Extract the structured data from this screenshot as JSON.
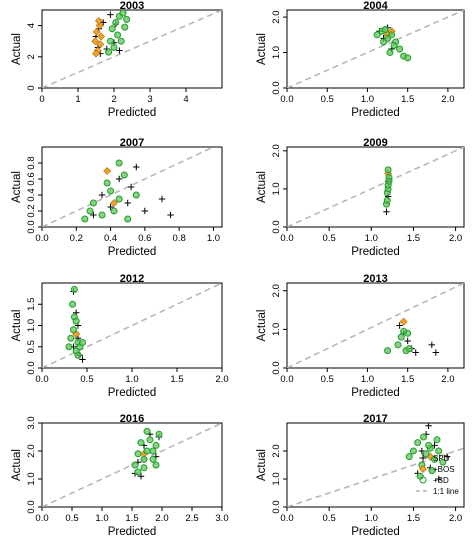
{
  "colors": {
    "SPD": "#000000",
    "BOS": "#f2a22a",
    "SD": "#1f9e2c",
    "SD_fill": "#63c25a",
    "one_to_one": "#b8b8b8"
  },
  "legend": {
    "placement": "right, inside panel 2017",
    "entries": [
      {
        "key": "SPD",
        "label": "SPD",
        "symbol": "plus"
      },
      {
        "key": "BOS",
        "label": "+BOS",
        "symbol": "diamond"
      },
      {
        "key": "SD",
        "label": "+SD",
        "symbol": "circle"
      },
      {
        "key": "line",
        "label": "1:1 line",
        "symbol": "dashed"
      }
    ]
  },
  "chart_data": [
    {
      "type": "scatter",
      "title": "2003",
      "xlabel": "Predicted",
      "ylabel": "Actual",
      "xlim": [
        0,
        5
      ],
      "ylim": [
        0,
        5
      ],
      "xticks": [
        "0",
        "1",
        "2",
        "3",
        "4"
      ],
      "yticks": [
        "0",
        "2",
        "4"
      ],
      "xtick_values": [
        0,
        1,
        2,
        3,
        4
      ],
      "ytick_values": [
        0,
        2,
        4
      ],
      "series": [
        {
          "name": "SPD",
          "points": [
            [
              1.5,
              3.3
            ],
            [
              1.55,
              2.6
            ],
            [
              1.58,
              3.8
            ],
            [
              1.62,
              2.2
            ],
            [
              1.7,
              4.2
            ],
            [
              1.8,
              2.5
            ],
            [
              1.9,
              4.7
            ],
            [
              2.0,
              2.9
            ],
            [
              2.05,
              4.1
            ],
            [
              2.15,
              2.4
            ]
          ]
        },
        {
          "name": "+BOS",
          "points": [
            [
              1.48,
              3.0
            ],
            [
              1.52,
              3.6
            ],
            [
              1.55,
              2.4
            ],
            [
              1.6,
              4.0
            ],
            [
              1.62,
              2.8
            ],
            [
              1.64,
              3.3
            ],
            [
              1.5,
              2.2
            ],
            [
              1.58,
              4.3
            ]
          ]
        },
        {
          "name": "+SD",
          "points": [
            [
              1.9,
              3.0
            ],
            [
              1.95,
              3.8
            ],
            [
              2.0,
              2.6
            ],
            [
              2.05,
              4.2
            ],
            [
              2.1,
              3.4
            ],
            [
              2.15,
              4.6
            ],
            [
              2.2,
              3.0
            ],
            [
              2.25,
              4.8
            ],
            [
              2.3,
              3.9
            ],
            [
              1.85,
              2.3
            ],
            [
              2.35,
              4.4
            ]
          ]
        }
      ]
    },
    {
      "type": "scatter",
      "title": "2004",
      "xlabel": "Predicted",
      "ylabel": "Actual",
      "xlim": [
        0,
        2.2
      ],
      "ylim": [
        0,
        2.2
      ],
      "xticks": [
        "0.0",
        "0.5",
        "1.0",
        "1.5",
        "2.0"
      ],
      "yticks": [
        "0.0",
        "1.0",
        "2.0"
      ],
      "xtick_values": [
        0,
        0.5,
        1.0,
        1.5,
        2.0
      ],
      "ytick_values": [
        0,
        1.0,
        2.0
      ],
      "series": [
        {
          "name": "SPD",
          "points": [
            [
              1.15,
              1.6
            ],
            [
              1.2,
              1.4
            ],
            [
              1.25,
              1.7
            ],
            [
              1.3,
              1.1
            ]
          ]
        },
        {
          "name": "+BOS",
          "points": [
            [
              1.25,
              1.5
            ],
            [
              1.3,
              1.6
            ]
          ]
        },
        {
          "name": "+SD",
          "points": [
            [
              1.12,
              1.5
            ],
            [
              1.18,
              1.6
            ],
            [
              1.2,
              1.3
            ],
            [
              1.25,
              1.4
            ],
            [
              1.28,
              1.0
            ],
            [
              1.3,
              1.5
            ],
            [
              1.35,
              1.3
            ],
            [
              1.4,
              1.1
            ],
            [
              1.45,
              0.9
            ],
            [
              1.5,
              0.85
            ],
            [
              1.22,
              1.65
            ],
            [
              1.33,
              1.2
            ]
          ]
        }
      ]
    },
    {
      "type": "scatter",
      "title": "2007",
      "xlabel": "Predicted",
      "ylabel": "Actual",
      "xlim": [
        0,
        1.05
      ],
      "ylim": [
        0,
        1.0
      ],
      "xticks": [
        "0.0",
        "0.2",
        "0.4",
        "0.6",
        "0.8",
        "1.0"
      ],
      "yticks": [
        "0.0",
        "0.2",
        "0.4",
        "0.6",
        "0.8"
      ],
      "xtick_values": [
        0,
        0.2,
        0.4,
        0.6,
        0.8,
        1.0
      ],
      "ytick_values": [
        0,
        0.2,
        0.4,
        0.6,
        0.8
      ],
      "series": [
        {
          "name": "SPD",
          "points": [
            [
              0.3,
              0.15
            ],
            [
              0.35,
              0.4
            ],
            [
              0.4,
              0.25
            ],
            [
              0.45,
              0.6
            ],
            [
              0.5,
              0.3
            ],
            [
              0.55,
              0.75
            ],
            [
              0.6,
              0.2
            ],
            [
              0.7,
              0.35
            ],
            [
              0.75,
              0.15
            ],
            [
              0.52,
              0.5
            ]
          ]
        },
        {
          "name": "+BOS",
          "points": [
            [
              0.38,
              0.7
            ],
            [
              0.42,
              0.3
            ]
          ]
        },
        {
          "name": "+SD",
          "points": [
            [
              0.25,
              0.1
            ],
            [
              0.28,
              0.2
            ],
            [
              0.3,
              0.3
            ],
            [
              0.35,
              0.15
            ],
            [
              0.38,
              0.55
            ],
            [
              0.4,
              0.45
            ],
            [
              0.42,
              0.2
            ],
            [
              0.45,
              0.35
            ],
            [
              0.48,
              0.65
            ],
            [
              0.5,
              0.1
            ],
            [
              0.55,
              0.4
            ],
            [
              0.45,
              0.8
            ]
          ]
        }
      ]
    },
    {
      "type": "scatter",
      "title": "2009",
      "xlabel": "Predicted",
      "ylabel": "Actual",
      "xlim": [
        0,
        2.1
      ],
      "ylim": [
        0,
        2.1
      ],
      "xticks": [
        "0.0",
        "0.5",
        "1.0",
        "1.5",
        "2.0"
      ],
      "yticks": [
        "0.0",
        "1.0",
        "2.0"
      ],
      "xtick_values": [
        0,
        0.5,
        1.0,
        1.5,
        2.0
      ],
      "ytick_values": [
        0,
        1.0,
        2.0
      ],
      "series": [
        {
          "name": "SPD",
          "points": [
            [
              1.18,
              0.4
            ],
            [
              1.2,
              0.8
            ],
            [
              1.2,
              1.2
            ]
          ]
        },
        {
          "name": "+BOS",
          "points": [
            [
              1.2,
              1.4
            ]
          ]
        },
        {
          "name": "+SD",
          "points": [
            [
              1.18,
              0.6
            ],
            [
              1.19,
              0.9
            ],
            [
              1.2,
              1.0
            ],
            [
              1.2,
              1.1
            ],
            [
              1.21,
              1.3
            ],
            [
              1.2,
              1.5
            ],
            [
              1.19,
              0.7
            ],
            [
              1.21,
              1.2
            ]
          ]
        }
      ]
    },
    {
      "type": "scatter",
      "title": "2012",
      "xlabel": "Predicted",
      "ylabel": "Actual",
      "xlim": [
        0,
        2.0
      ],
      "ylim": [
        0,
        2.0
      ],
      "xticks": [
        "0.0",
        "0.5",
        "1.0",
        "1.5",
        "2.0"
      ],
      "yticks": [
        "0.0",
        "0.5",
        "1.0",
        "1.5"
      ],
      "xtick_values": [
        0,
        0.5,
        1.0,
        1.5,
        2.0
      ],
      "ytick_values": [
        0,
        0.5,
        1.0,
        1.5
      ],
      "series": [
        {
          "name": "SPD",
          "points": [
            [
              0.35,
              1.8
            ],
            [
              0.38,
              1.3
            ],
            [
              0.4,
              0.7
            ],
            [
              0.42,
              0.3
            ],
            [
              0.45,
              0.2
            ],
            [
              0.4,
              1.0
            ],
            [
              0.35,
              0.5
            ]
          ]
        },
        {
          "name": "+BOS",
          "points": [
            [
              0.38,
              0.8
            ]
          ]
        },
        {
          "name": "+SD",
          "points": [
            [
              0.3,
              0.5
            ],
            [
              0.32,
              0.7
            ],
            [
              0.35,
              0.9
            ],
            [
              0.36,
              1.2
            ],
            [
              0.38,
              0.4
            ],
            [
              0.4,
              0.6
            ],
            [
              0.42,
              0.5
            ],
            [
              0.34,
              1.5
            ],
            [
              0.36,
              1.85
            ],
            [
              0.4,
              0.3
            ],
            [
              0.45,
              0.6
            ],
            [
              0.38,
              1.1
            ]
          ]
        }
      ]
    },
    {
      "type": "scatter",
      "title": "2013",
      "xlabel": "Predicted",
      "ylabel": "Actual",
      "xlim": [
        0,
        2.2
      ],
      "ylim": [
        0,
        2.2
      ],
      "xticks": [
        "0.0",
        "0.5",
        "1.0",
        "1.5",
        "2.0"
      ],
      "yticks": [
        "0.0",
        "1.0",
        "2.0"
      ],
      "xtick_values": [
        0,
        0.5,
        1.0,
        1.5,
        2.0
      ],
      "ytick_values": [
        0,
        1.0,
        2.0
      ],
      "series": [
        {
          "name": "SPD",
          "points": [
            [
              1.4,
              1.1
            ],
            [
              1.45,
              0.9
            ],
            [
              1.5,
              0.7
            ],
            [
              1.55,
              0.5
            ],
            [
              1.6,
              0.4
            ],
            [
              1.8,
              0.6
            ],
            [
              1.85,
              0.4
            ]
          ]
        },
        {
          "name": "+BOS",
          "points": [
            [
              1.45,
              1.2
            ]
          ]
        },
        {
          "name": "+SD",
          "points": [
            [
              1.25,
              0.45
            ],
            [
              1.38,
              0.6
            ],
            [
              1.42,
              0.8
            ],
            [
              1.48,
              0.45
            ],
            [
              1.5,
              0.9
            ],
            [
              1.52,
              0.5
            ],
            [
              1.45,
              0.95
            ]
          ]
        }
      ]
    },
    {
      "type": "scatter",
      "title": "2016",
      "xlabel": "Predicted",
      "ylabel": "Actual",
      "xlim": [
        0,
        3.0
      ],
      "ylim": [
        0,
        3.0
      ],
      "xticks": [
        "0.0",
        "0.5",
        "1.0",
        "1.5",
        "2.0",
        "2.5",
        "3.0"
      ],
      "yticks": [
        "0.0",
        "1.0",
        "2.0",
        "3.0"
      ],
      "xtick_values": [
        0,
        0.5,
        1.0,
        1.5,
        2.0,
        2.5,
        3.0
      ],
      "ytick_values": [
        0,
        1.0,
        2.0,
        3.0
      ],
      "series": [
        {
          "name": "SPD",
          "points": [
            [
              1.55,
              1.2
            ],
            [
              1.6,
              1.6
            ],
            [
              1.7,
              2.2
            ],
            [
              1.8,
              2.6
            ],
            [
              1.9,
              1.8
            ],
            [
              1.65,
              1.1
            ],
            [
              1.95,
              2.5
            ]
          ]
        },
        {
          "name": "+BOS",
          "points": [
            [
              1.7,
              1.9
            ]
          ]
        },
        {
          "name": "+SD",
          "points": [
            [
              1.55,
              1.5
            ],
            [
              1.6,
              1.9
            ],
            [
              1.65,
              2.3
            ],
            [
              1.7,
              1.4
            ],
            [
              1.75,
              2.0
            ],
            [
              1.8,
              2.4
            ],
            [
              1.85,
              1.7
            ],
            [
              1.9,
              2.2
            ],
            [
              1.95,
              2.6
            ],
            [
              1.6,
              1.25
            ],
            [
              1.75,
              2.7
            ],
            [
              1.85,
              2.0
            ],
            [
              1.7,
              1.7
            ],
            [
              1.9,
              1.5
            ]
          ]
        }
      ]
    },
    {
      "type": "scatter",
      "title": "2017",
      "xlabel": "Predicted",
      "ylabel": "Actual",
      "xlim": [
        0,
        2.1
      ],
      "ylim": [
        0,
        3.0
      ],
      "xticks": [
        "0.0",
        "0.5",
        "1.0",
        "1.5",
        "2.0"
      ],
      "yticks": [
        "0.0",
        "1.0",
        "2.0"
      ],
      "xtick_values": [
        0,
        0.5,
        1.0,
        1.5,
        2.0
      ],
      "ytick_values": [
        0,
        1.0,
        2.0
      ],
      "series": [
        {
          "name": "SPD",
          "points": [
            [
              1.55,
              1.2
            ],
            [
              1.6,
              2.0
            ],
            [
              1.65,
              2.6
            ],
            [
              1.7,
              1.4
            ],
            [
              1.75,
              2.2
            ],
            [
              1.8,
              1.0
            ],
            [
              1.9,
              1.8
            ],
            [
              1.68,
              2.9
            ]
          ]
        },
        {
          "name": "+BOS",
          "points": [
            [
              1.7,
              1.8
            ]
          ]
        },
        {
          "name": "+SD",
          "points": [
            [
              1.45,
              1.8
            ],
            [
              1.5,
              2.0
            ],
            [
              1.55,
              2.3
            ],
            [
              1.6,
              1.5
            ],
            [
              1.62,
              2.5
            ],
            [
              1.65,
              1.9
            ],
            [
              1.7,
              2.1
            ],
            [
              1.72,
              1.3
            ],
            [
              1.75,
              1.7
            ],
            [
              1.78,
              2.4
            ],
            [
              1.8,
              2.0
            ],
            [
              1.85,
              1.6
            ],
            [
              1.58,
              1.1
            ],
            [
              1.68,
              2.2
            ]
          ]
        }
      ]
    }
  ]
}
